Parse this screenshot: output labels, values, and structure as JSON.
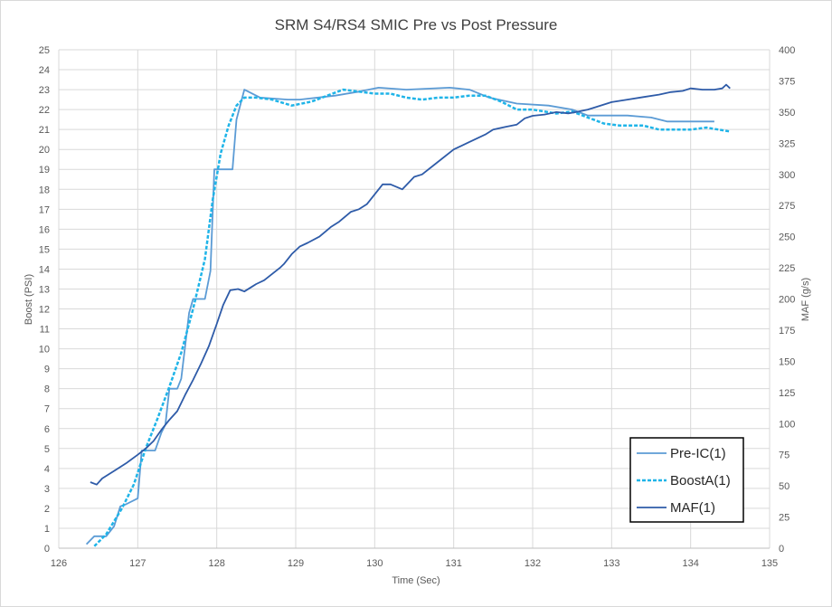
{
  "chart_data": {
    "type": "line",
    "title": "SRM S4/RS4 SMIC Pre vs Post Pressure",
    "xlabel": "Time (Sec)",
    "ylabel": "Boost (PSI)",
    "y2label": "MAF (g/s)",
    "xlim": [
      126,
      135
    ],
    "ylim": [
      0,
      25
    ],
    "y2lim": [
      0,
      400
    ],
    "x_ticks": [
      "126",
      "127",
      "128",
      "129",
      "130",
      "131",
      "132",
      "133",
      "134",
      "135"
    ],
    "y_ticks": [
      "0",
      "1",
      "2",
      "3",
      "4",
      "5",
      "6",
      "7",
      "8",
      "9",
      "10",
      "11",
      "12",
      "13",
      "14",
      "15",
      "16",
      "17",
      "18",
      "19",
      "20",
      "21",
      "22",
      "23",
      "24",
      "25"
    ],
    "y2_ticks": [
      "0",
      "25",
      "50",
      "75",
      "100",
      "125",
      "150",
      "175",
      "200",
      "225",
      "250",
      "275",
      "300",
      "325",
      "350",
      "375",
      "400"
    ],
    "grid": true,
    "legend_position": "bottom-right",
    "series": [
      {
        "name": "Pre-IC(1)",
        "color": "#5b9bd5",
        "style": "solid",
        "axis": "left",
        "x": [
          126.35,
          126.45,
          126.6,
          126.7,
          126.78,
          126.85,
          127.0,
          127.05,
          127.15,
          127.22,
          127.3,
          127.35,
          127.4,
          127.5,
          127.55,
          127.65,
          127.7,
          127.75,
          127.85,
          127.92,
          127.97,
          128.0,
          128.2,
          128.25,
          128.35,
          128.55,
          128.9,
          129.05,
          129.5,
          129.8,
          130.05,
          130.4,
          130.95,
          131.2,
          131.45,
          131.8,
          132.2,
          132.5,
          132.7,
          133.2,
          133.5,
          133.7,
          134.3
        ],
        "y": [
          0.2,
          0.6,
          0.6,
          1.1,
          2.1,
          2.2,
          2.5,
          4.9,
          4.9,
          4.9,
          5.8,
          6.2,
          8.0,
          8.0,
          8.5,
          11.8,
          12.5,
          12.5,
          12.5,
          13.9,
          19.0,
          19.0,
          19.0,
          21.5,
          23.0,
          22.6,
          22.5,
          22.5,
          22.7,
          22.9,
          23.1,
          23.0,
          23.1,
          23.0,
          22.6,
          22.3,
          22.2,
          22.0,
          21.7,
          21.7,
          21.6,
          21.4,
          21.4
        ]
      },
      {
        "name": "BoostA(1)",
        "color": "#1fb4e8",
        "style": "dashed",
        "axis": "left",
        "x": [
          126.45,
          126.6,
          126.8,
          126.95,
          127.1,
          127.25,
          127.4,
          127.55,
          127.7,
          127.85,
          127.95,
          128.05,
          128.15,
          128.25,
          128.35,
          128.5,
          128.7,
          128.95,
          129.2,
          129.4,
          129.6,
          129.8,
          130.0,
          130.2,
          130.4,
          130.6,
          130.8,
          131.0,
          131.2,
          131.4,
          131.6,
          131.8,
          132.0,
          132.3,
          132.5,
          132.7,
          132.9,
          133.1,
          133.4,
          133.6,
          133.8,
          134.0,
          134.2,
          134.35,
          134.5
        ],
        "y": [
          0.1,
          0.7,
          2.0,
          3.2,
          5.0,
          6.5,
          8.1,
          9.8,
          12.0,
          14.5,
          17.5,
          19.8,
          21.2,
          22.2,
          22.6,
          22.6,
          22.5,
          22.2,
          22.4,
          22.7,
          23.0,
          22.9,
          22.8,
          22.8,
          22.6,
          22.5,
          22.6,
          22.6,
          22.7,
          22.7,
          22.4,
          22.0,
          22.0,
          21.8,
          21.9,
          21.6,
          21.3,
          21.2,
          21.2,
          21.0,
          21.0,
          21.0,
          21.1,
          21.0,
          20.9
        ]
      },
      {
        "name": "MAF(1)",
        "color": "#2e5ba8",
        "style": "solid",
        "axis": "right",
        "x": [
          126.4,
          126.48,
          126.55,
          126.7,
          126.85,
          127.0,
          127.1,
          127.2,
          127.3,
          127.4,
          127.5,
          127.6,
          127.7,
          127.8,
          127.9,
          128.0,
          128.08,
          128.17,
          128.27,
          128.35,
          128.45,
          128.5,
          128.6,
          128.7,
          128.8,
          128.85,
          128.95,
          129.05,
          129.15,
          129.3,
          129.45,
          129.55,
          129.7,
          129.8,
          129.9,
          130.1,
          130.2,
          130.35,
          130.5,
          130.6,
          130.8,
          131.0,
          131.2,
          131.4,
          131.5,
          131.65,
          131.8,
          131.9,
          132.0,
          132.15,
          132.3,
          132.45,
          132.55,
          132.7,
          132.8,
          132.9,
          133.0,
          133.2,
          133.4,
          133.6,
          133.75,
          133.9,
          134.0,
          134.15,
          134.3,
          134.4,
          134.45,
          134.5
        ],
        "y": [
          53,
          51,
          56,
          62,
          68,
          75,
          80,
          86,
          95,
          103,
          110,
          123,
          135,
          148,
          162,
          180,
          195,
          207,
          208,
          206,
          210,
          212,
          215,
          220,
          225,
          228,
          236,
          242,
          245,
          250,
          258,
          262,
          270,
          272,
          276,
          292,
          292,
          288,
          298,
          300,
          310,
          320,
          326,
          332,
          336,
          338,
          340,
          345,
          347,
          348,
          350,
          349,
          350,
          352,
          354,
          356,
          358,
          360,
          362,
          364,
          366,
          367,
          369,
          368,
          368,
          369,
          372,
          369
        ]
      }
    ]
  }
}
